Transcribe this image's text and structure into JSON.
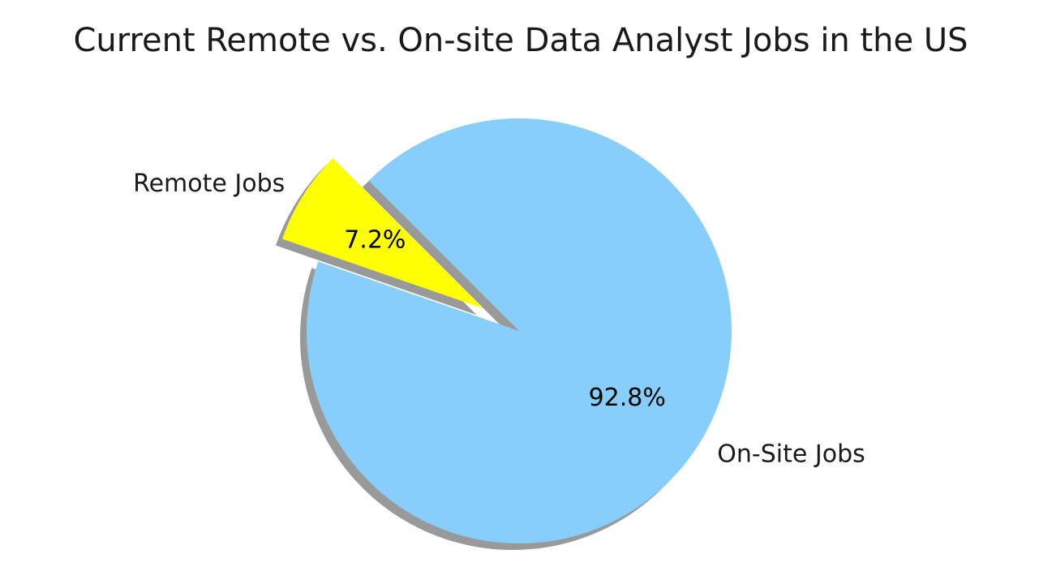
{
  "chart_data": {
    "type": "pie",
    "title": "Current Remote vs. On-site Data Analyst Jobs in the US",
    "slices": [
      {
        "label": "Remote Jobs",
        "value": 7.2,
        "pct_label": "7.2%",
        "color": "#ffff00",
        "exploded": true
      },
      {
        "label": "On-Site Jobs",
        "value": 92.8,
        "pct_label": "92.8%",
        "color": "#87cefa",
        "exploded": false
      }
    ],
    "shadow": true,
    "start_angle_deg": 135,
    "legend": "none"
  }
}
